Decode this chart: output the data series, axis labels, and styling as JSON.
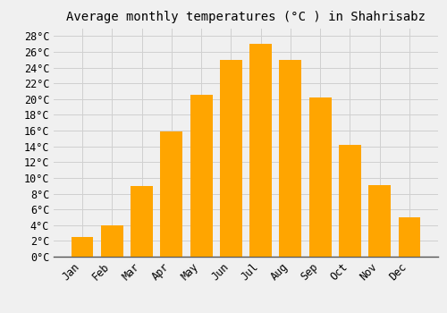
{
  "title": "Average monthly temperatures (°C ) in Shahrisabz",
  "months": [
    "Jan",
    "Feb",
    "Mar",
    "Apr",
    "May",
    "Jun",
    "Jul",
    "Aug",
    "Sep",
    "Oct",
    "Nov",
    "Dec"
  ],
  "values": [
    2.5,
    4.0,
    9.0,
    15.9,
    20.5,
    25.0,
    27.0,
    25.0,
    20.2,
    14.2,
    9.1,
    5.0
  ],
  "bar_color": "#FFA500",
  "ylim": [
    0,
    29
  ],
  "ytick_step": 2,
  "background_color": "#f0f0f0",
  "grid_color": "#d0d0d0",
  "title_fontsize": 10,
  "tick_fontsize": 8.5
}
